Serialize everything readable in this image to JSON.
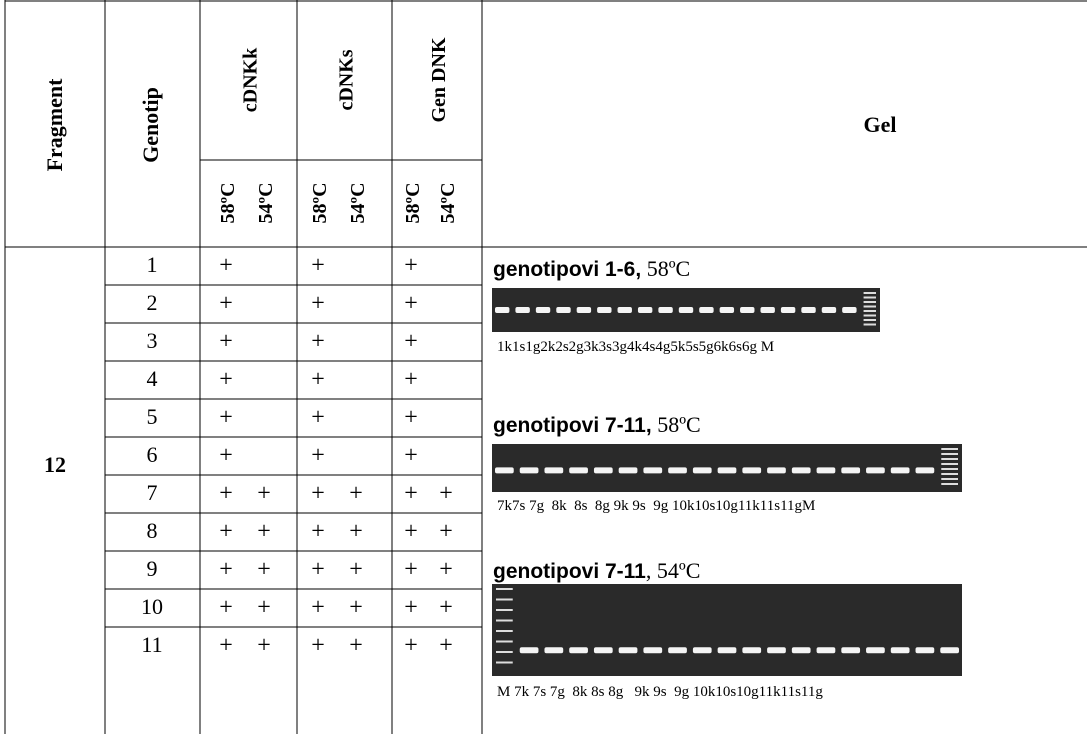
{
  "header": {
    "fragment": "Fragment",
    "genotype": "Genotip",
    "groups": [
      "cDNKk",
      "cDNKs",
      "Gen DNK"
    ],
    "temps": [
      "58ºC",
      "54ºC"
    ],
    "gel": "Gel"
  },
  "fragment": "12",
  "rows": [
    {
      "genotype": "1",
      "marks": [
        [
          "+"
        ],
        [
          "+"
        ],
        [
          "+"
        ]
      ]
    },
    {
      "genotype": "2",
      "marks": [
        [
          "+"
        ],
        [
          "+"
        ],
        [
          "+"
        ]
      ]
    },
    {
      "genotype": "3",
      "marks": [
        [
          "+"
        ],
        [
          "+"
        ],
        [
          "+"
        ]
      ]
    },
    {
      "genotype": "4",
      "marks": [
        [
          "+"
        ],
        [
          "+"
        ],
        [
          "+"
        ]
      ]
    },
    {
      "genotype": "5",
      "marks": [
        [
          "+"
        ],
        [
          "+"
        ],
        [
          "+"
        ]
      ]
    },
    {
      "genotype": "6",
      "marks": [
        [
          "+"
        ],
        [
          "+"
        ],
        [
          "+"
        ]
      ]
    },
    {
      "genotype": "7",
      "marks": [
        [
          "+",
          "+"
        ],
        [
          "+",
          "+"
        ],
        [
          "+",
          "+"
        ]
      ]
    },
    {
      "genotype": "8",
      "marks": [
        [
          "+",
          "+"
        ],
        [
          "+",
          "+"
        ],
        [
          "+",
          "+"
        ]
      ]
    },
    {
      "genotype": "9",
      "marks": [
        [
          "+",
          "+"
        ],
        [
          "+",
          "+"
        ],
        [
          "+",
          "+"
        ]
      ]
    },
    {
      "genotype": "10",
      "marks": [
        [
          "+",
          "+"
        ],
        [
          "+",
          "+"
        ],
        [
          "+",
          "+"
        ]
      ]
    },
    {
      "genotype": "11",
      "marks": [
        [
          "+",
          "+"
        ],
        [
          "+",
          "+"
        ],
        [
          "+",
          "+"
        ]
      ]
    }
  ],
  "gel_panels": [
    {
      "title_bold": "genotipovi 1-6,",
      "title_rest": " 58ºC",
      "lanes": "1k1s1g2k2s2g3k3s3g4k4s4g5k5s5g6k6s6g M"
    },
    {
      "title_bold": "genotipovi 7-11,",
      "title_rest": " 58ºC",
      "lanes": "7k7s 7g  8k  8s  8g 9k 9s  9g 10k10s10g11k11s11gM"
    },
    {
      "title_bold": "genotipovi 7-11",
      "title_rest": ", 54ºC",
      "lanes": "M 7k 7s 7g  8k 8s 8g   9k 9s  9g 10k10s10g11k11s11g"
    }
  ]
}
